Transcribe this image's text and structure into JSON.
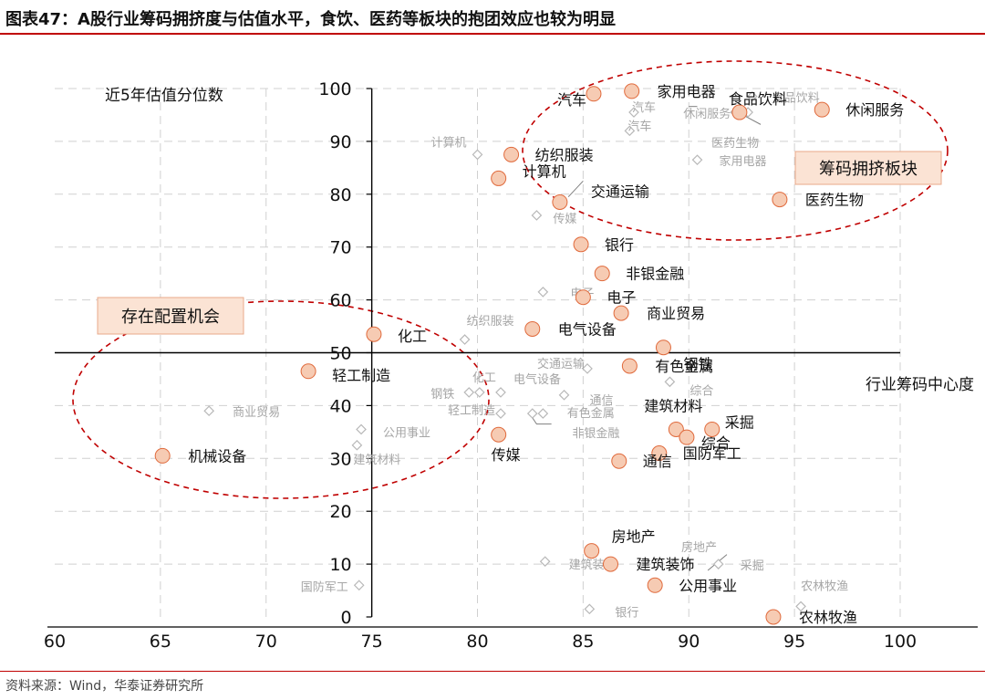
{
  "header": {
    "title": "图表47：A股行业筹码拥挤度与估值水平，食饮、医药等板块的抱团效应也较为明显"
  },
  "footer": {
    "source": "资料来源：Wind，华泰证券研究所"
  },
  "colors": {
    "accent": "#c00000",
    "current_fill": "#f6cbb3",
    "current_stroke": "#e06a3c",
    "prior_fill": "#ffffff",
    "prior_stroke": "#b8b8b8",
    "prior_label": "#a6a6a6",
    "grid": "#d0d0d0",
    "box_fill": "#fbe3d4",
    "box_stroke": "#e8a98a"
  },
  "chart_data": {
    "type": "scatter",
    "title": "A股行业筹码拥挤度与估值水平，食饮、医药等板块的抱团效应也较为明显",
    "xlabel": "行业筹码中心度",
    "ylabel": "近5年估值分位数",
    "xlim": [
      60,
      100
    ],
    "ylim": [
      0,
      100
    ],
    "x_ticks": [
      60,
      65,
      70,
      75,
      80,
      85,
      90,
      95,
      100
    ],
    "y_ticks": [
      0,
      10,
      20,
      30,
      40,
      50,
      60,
      70,
      80,
      90,
      100
    ],
    "axis_cross": {
      "x": 75,
      "y": 50
    },
    "grid": true,
    "series": [
      {
        "marker": "circle",
        "points": [
          {
            "label": "汽车",
            "x": 85.5,
            "y": 99
          },
          {
            "label": "家用电器",
            "x": 87.3,
            "y": 99.5
          },
          {
            "label": "食品饮料",
            "x": 92.4,
            "y": 95.5
          },
          {
            "label": "休闲服务",
            "x": 96.3,
            "y": 96
          },
          {
            "label": "纺织服装",
            "x": 81.6,
            "y": 87.5
          },
          {
            "label": "计算机",
            "x": 81.0,
            "y": 83
          },
          {
            "label": "交通运输",
            "x": 83.9,
            "y": 78.5
          },
          {
            "label": "医药生物",
            "x": 94.3,
            "y": 79
          },
          {
            "label": "银行",
            "x": 84.9,
            "y": 70.5
          },
          {
            "label": "非银金融",
            "x": 85.9,
            "y": 65
          },
          {
            "label": "电子",
            "x": 85.0,
            "y": 60.5
          },
          {
            "label": "商业贸易",
            "x": 86.8,
            "y": 57.5
          },
          {
            "label": "电气设备",
            "x": 82.6,
            "y": 54.5
          },
          {
            "label": "钢铁",
            "x": 88.8,
            "y": 51
          },
          {
            "label": "化工",
            "x": 75.1,
            "y": 53.5
          },
          {
            "label": "有色金属",
            "x": 87.2,
            "y": 47.5
          },
          {
            "label": "轻工制造",
            "x": 72.0,
            "y": 46.5
          },
          {
            "label": "建筑材料",
            "x": 89.4,
            "y": 35.5
          },
          {
            "label": "综合",
            "x": 89.9,
            "y": 34
          },
          {
            "label": "采掘",
            "x": 91.1,
            "y": 35.5
          },
          {
            "label": "国防军工",
            "x": 88.6,
            "y": 31
          },
          {
            "label": "传媒",
            "x": 81.0,
            "y": 34.5
          },
          {
            "label": "通信",
            "x": 86.7,
            "y": 29.5
          },
          {
            "label": "机械设备",
            "x": 65.1,
            "y": 30.5
          },
          {
            "label": "房地产",
            "x": 85.4,
            "y": 12.5
          },
          {
            "label": "建筑装饰",
            "x": 86.3,
            "y": 10
          },
          {
            "label": "公用事业",
            "x": 88.4,
            "y": 6
          },
          {
            "label": "农林牧渔",
            "x": 94.0,
            "y": 0
          }
        ]
      },
      {
        "marker": "diamond",
        "points": [
          {
            "label": "食品饮料",
            "x": 93.0,
            "y": 98.5
          },
          {
            "label": "休闲服务",
            "x": 92.2,
            "y": 95.5
          },
          {
            "label": "汽车",
            "x": 87.4,
            "y": 95.5
          },
          {
            "label": "医药生物",
            "x": 92.8,
            "y": 95.5
          },
          {
            "label": "计算机",
            "x": 80.0,
            "y": 87.5
          },
          {
            "label": "汽车",
            "x": 87.2,
            "y": 92
          },
          {
            "label": "家用电器",
            "x": 90.4,
            "y": 86.5
          },
          {
            "label": "传媒",
            "x": 82.8,
            "y": 76
          },
          {
            "label": "电子",
            "x": 83.1,
            "y": 61.5
          },
          {
            "label": "纺织服装",
            "x": 79.4,
            "y": 52.5
          },
          {
            "label": "交通运输",
            "x": 85.2,
            "y": 47
          },
          {
            "label": "综合",
            "x": 89.1,
            "y": 44.5
          },
          {
            "label": "钢铁",
            "x": 79.6,
            "y": 42.5
          },
          {
            "label": "化工",
            "x": 80.1,
            "y": 42.5
          },
          {
            "label": "电气设备",
            "x": 81.1,
            "y": 42.5
          },
          {
            "label": "通信",
            "x": 84.1,
            "y": 42
          },
          {
            "label": "商业贸易",
            "x": 67.3,
            "y": 39
          },
          {
            "label": "轻工制造",
            "x": 81.1,
            "y": 38.5
          },
          {
            "label": "有色金属",
            "x": 82.6,
            "y": 38.5
          },
          {
            "label": "非银金融",
            "x": 83.1,
            "y": 38.5
          },
          {
            "label": "公用事业",
            "x": 74.5,
            "y": 35.5
          },
          {
            "label": "建筑材料",
            "x": 74.3,
            "y": 32.5
          },
          {
            "label": "房地产",
            "x": 89.3,
            "y": 10
          },
          {
            "label": "建筑装饰",
            "x": 83.2,
            "y": 10.5
          },
          {
            "label": "采掘",
            "x": 91.4,
            "y": 10
          },
          {
            "label": "国防军工",
            "x": 74.4,
            "y": 6
          },
          {
            "label": "银行",
            "x": 85.3,
            "y": 1.5
          },
          {
            "label": "农林牧渔",
            "x": 95.3,
            "y": 2
          }
        ]
      }
    ],
    "annotations": [
      {
        "text": "筹码拥挤板块",
        "style": "box"
      },
      {
        "text": "存在配置机会",
        "style": "box"
      }
    ]
  }
}
